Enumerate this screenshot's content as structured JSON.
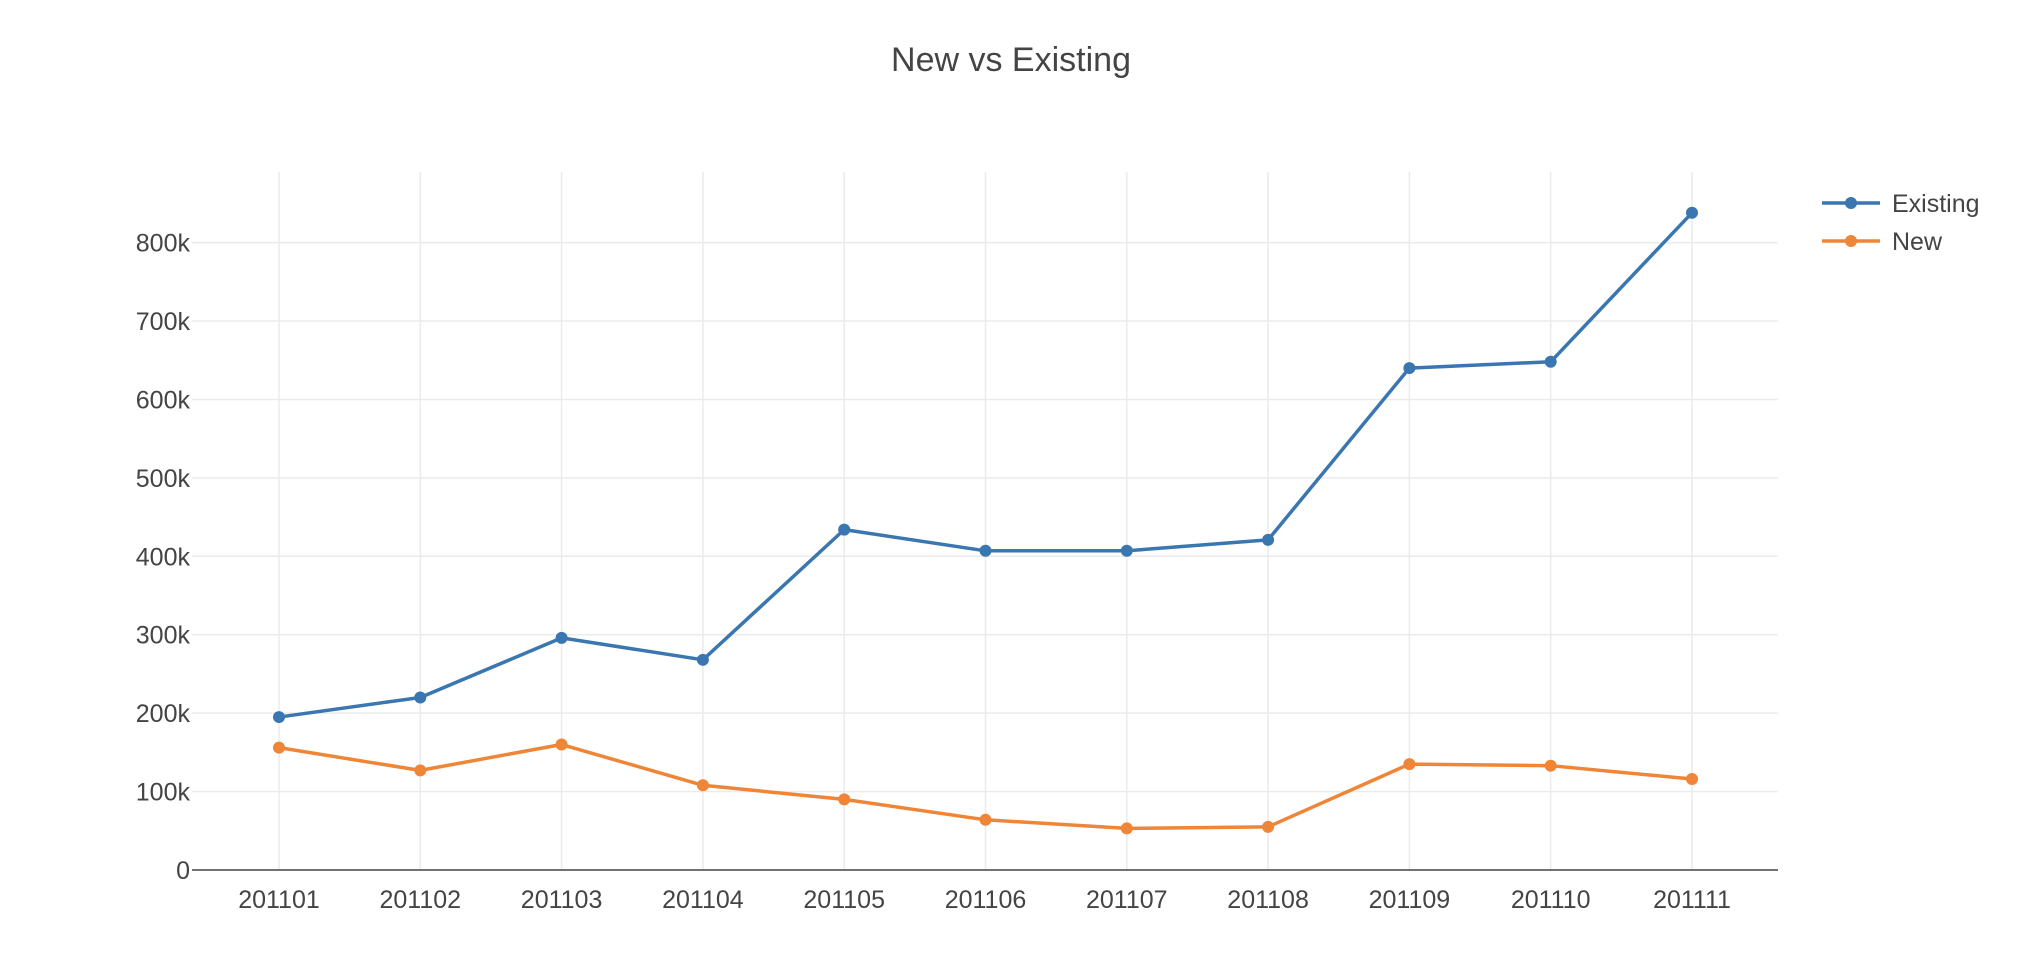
{
  "chart_data": {
    "type": "line",
    "title": "New vs Existing",
    "xlabel": "",
    "ylabel": "",
    "categories": [
      "201101",
      "201102",
      "201103",
      "201104",
      "201105",
      "201106",
      "201107",
      "201108",
      "201109",
      "201110",
      "201111"
    ],
    "y_ticks": [
      0,
      100000,
      200000,
      300000,
      400000,
      500000,
      600000,
      700000,
      800000
    ],
    "y_tick_labels": [
      "0",
      "100k",
      "200k",
      "300k",
      "400k",
      "500k",
      "600k",
      "700k",
      "800k"
    ],
    "ylim": [
      0,
      890000
    ],
    "grid": true,
    "legend_position": "top-right",
    "series": [
      {
        "name": "Existing",
        "color": "#3a76af",
        "values": [
          195000,
          220000,
          296000,
          268000,
          434000,
          407000,
          407000,
          421000,
          640000,
          648000,
          838000
        ]
      },
      {
        "name": "New",
        "color": "#ef8536",
        "values": [
          156000,
          127000,
          160000,
          108000,
          90000,
          64000,
          53000,
          55000,
          135000,
          133000,
          116000
        ]
      }
    ]
  }
}
